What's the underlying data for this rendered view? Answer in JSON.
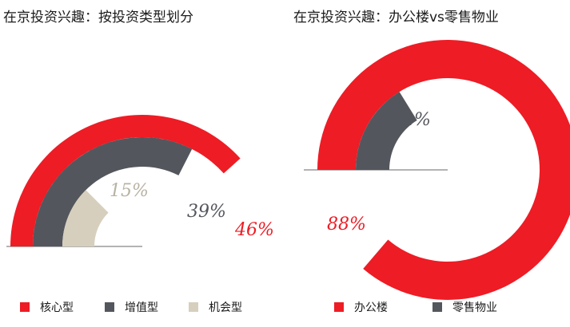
{
  "colors": {
    "core": "#ee1c25",
    "value_add": "#54565d",
    "opportunistic": "#d6cfbd",
    "office": "#ee1c25",
    "retail": "#54565d",
    "baseline": "#9a9a9a",
    "label_light": "#b8b2a2"
  },
  "chart_data": [
    {
      "type": "pie",
      "title": "在京投资兴趣：按投资类型划分",
      "categories": [
        "核心型",
        "增值型",
        "机会型"
      ],
      "values": [
        46,
        39,
        15
      ],
      "value_labels": [
        "46%",
        "39%",
        "15%"
      ]
    },
    {
      "type": "pie",
      "title": "在京投资兴趣：办公楼vs零售物业",
      "categories": [
        "办公楼",
        "零售物业"
      ],
      "values": [
        88,
        12
      ],
      "value_labels": [
        "88%",
        "12%"
      ]
    }
  ]
}
